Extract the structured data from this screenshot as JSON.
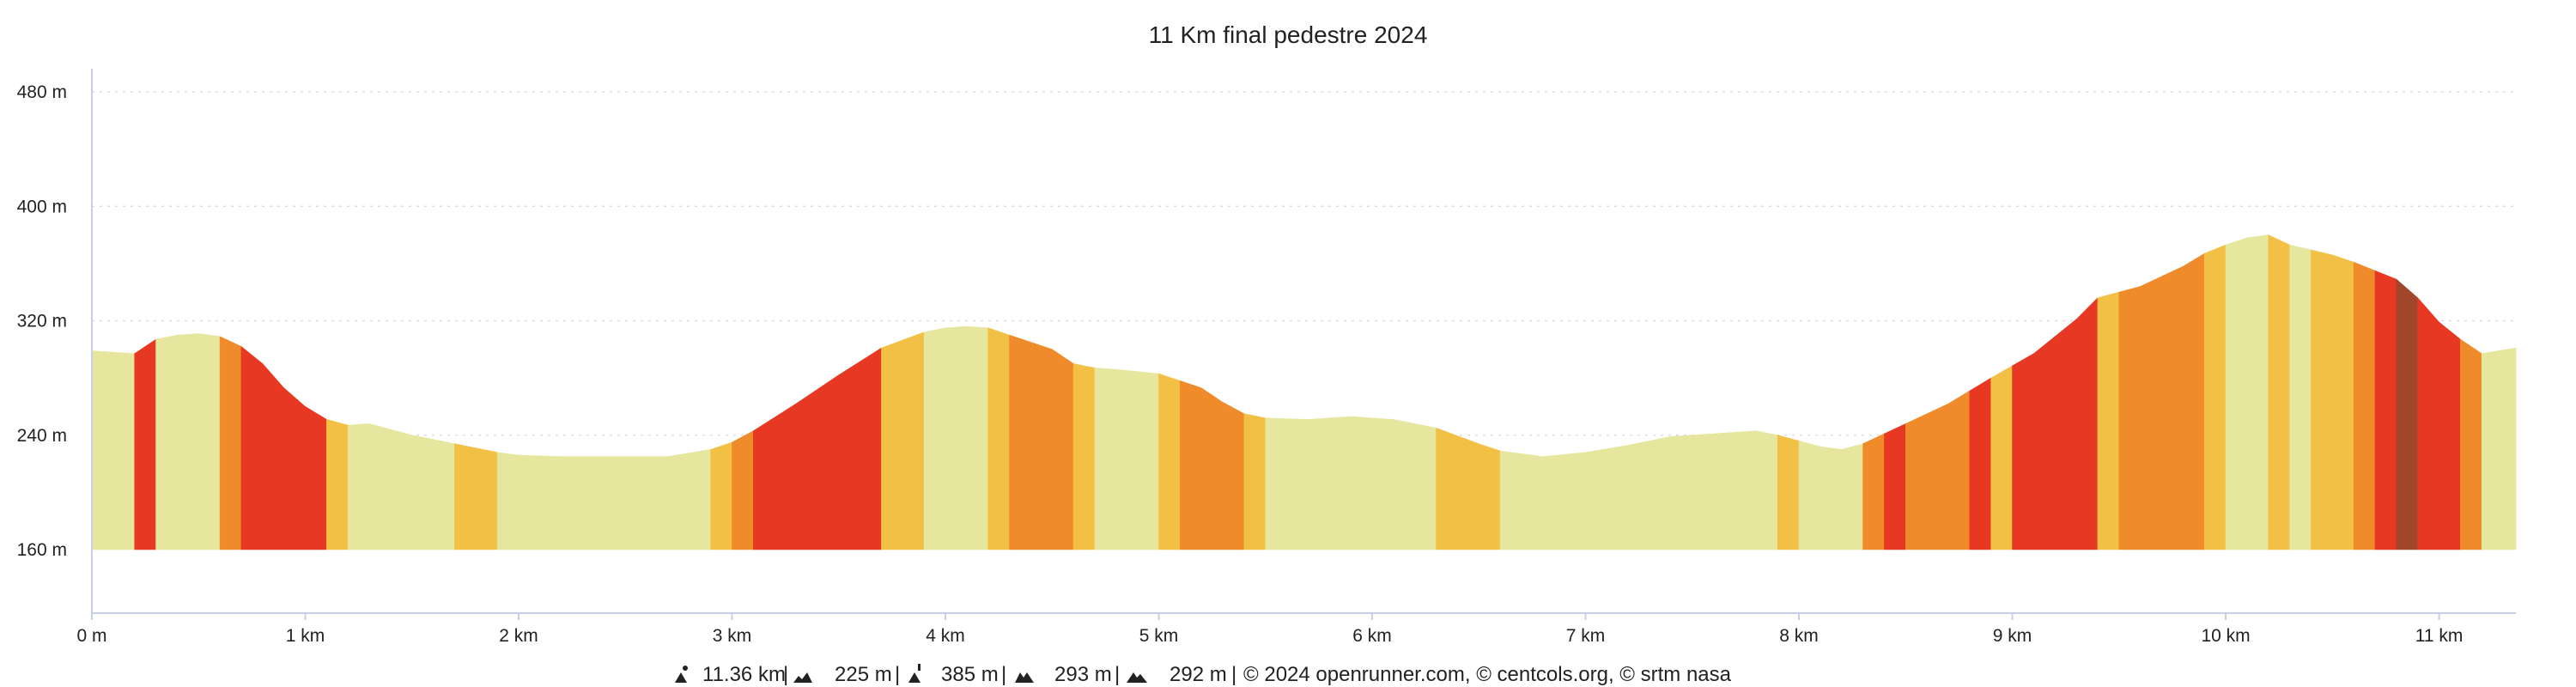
{
  "chart_data": {
    "type": "area",
    "title": "11 Km final pedestre 2024",
    "xlabel": "",
    "ylabel": "",
    "xlim": [
      0,
      11.36
    ],
    "ylim": [
      160,
      480
    ],
    "grid": true,
    "y_ticks": [
      {
        "value": 160,
        "label": "160 m"
      },
      {
        "value": 240,
        "label": "240 m"
      },
      {
        "value": 320,
        "label": "320 m"
      },
      {
        "value": 400,
        "label": "400 m"
      },
      {
        "value": 480,
        "label": "480 m"
      }
    ],
    "x_ticks": [
      {
        "value": 0,
        "label": "0 m"
      },
      {
        "value": 1,
        "label": "1 km"
      },
      {
        "value": 2,
        "label": "2 km"
      },
      {
        "value": 3,
        "label": "3 km"
      },
      {
        "value": 4,
        "label": "4 km"
      },
      {
        "value": 5,
        "label": "5 km"
      },
      {
        "value": 6,
        "label": "6 km"
      },
      {
        "value": 7,
        "label": "7 km"
      },
      {
        "value": 8,
        "label": "8 km"
      },
      {
        "value": 9,
        "label": "9 km"
      },
      {
        "value": 10,
        "label": "10 km"
      },
      {
        "value": 11,
        "label": "11 km"
      }
    ],
    "profile": {
      "x": [
        0,
        0.2,
        0.3,
        0.4,
        0.5,
        0.6,
        0.7,
        0.8,
        0.9,
        1.0,
        1.1,
        1.2,
        1.3,
        1.5,
        1.7,
        1.9,
        2.0,
        2.2,
        2.5,
        2.7,
        2.9,
        3.0,
        3.1,
        3.3,
        3.5,
        3.7,
        3.9,
        4.0,
        4.1,
        4.2,
        4.3,
        4.5,
        4.6,
        4.7,
        4.8,
        5.0,
        5.1,
        5.2,
        5.3,
        5.4,
        5.5,
        5.7,
        5.9,
        6.1,
        6.3,
        6.5,
        6.6,
        6.8,
        7.0,
        7.2,
        7.4,
        7.6,
        7.8,
        7.9,
        8.0,
        8.1,
        8.2,
        8.3,
        8.5,
        8.7,
        8.9,
        9.1,
        9.3,
        9.4,
        9.6,
        9.8,
        9.9,
        10.0,
        10.1,
        10.2,
        10.3,
        10.5,
        10.6,
        10.8,
        10.9,
        11.0,
        11.1,
        11.2,
        11.36
      ],
      "y": [
        299,
        297,
        307,
        310,
        311,
        309,
        302,
        290,
        273,
        260,
        251,
        247,
        248,
        240,
        234,
        228,
        226,
        225,
        225,
        225,
        230,
        235,
        243,
        262,
        282,
        301,
        312,
        315,
        316,
        315,
        310,
        300,
        290,
        287,
        286,
        283,
        278,
        273,
        263,
        255,
        252,
        251,
        253,
        251,
        245,
        234,
        229,
        225,
        228,
        233,
        239,
        241,
        243,
        240,
        236,
        232,
        230,
        234,
        248,
        262,
        280,
        297,
        321,
        336,
        344,
        358,
        367,
        373,
        378,
        380,
        373,
        366,
        361,
        349,
        336,
        319,
        307,
        297,
        301
      ]
    },
    "slope_color_segments": [
      {
        "from": 0,
        "to": 0.2,
        "color": "#e6e69e"
      },
      {
        "from": 0.2,
        "to": 0.3,
        "color": "#e63822"
      },
      {
        "from": 0.3,
        "to": 0.6,
        "color": "#e6e69e"
      },
      {
        "from": 0.6,
        "to": 0.7,
        "color": "#f08b2c"
      },
      {
        "from": 0.7,
        "to": 1.1,
        "color": "#e63822"
      },
      {
        "from": 1.1,
        "to": 1.2,
        "color": "#f2c044"
      },
      {
        "from": 1.2,
        "to": 1.7,
        "color": "#e6e69e"
      },
      {
        "from": 1.7,
        "to": 1.9,
        "color": "#f2c044"
      },
      {
        "from": 1.9,
        "to": 2.9,
        "color": "#e6e69e"
      },
      {
        "from": 2.9,
        "to": 3.0,
        "color": "#f2c044"
      },
      {
        "from": 3.0,
        "to": 3.1,
        "color": "#f08b2c"
      },
      {
        "from": 3.1,
        "to": 3.7,
        "color": "#e63822"
      },
      {
        "from": 3.7,
        "to": 3.9,
        "color": "#f2c044"
      },
      {
        "from": 3.9,
        "to": 4.2,
        "color": "#e6e69e"
      },
      {
        "from": 4.2,
        "to": 4.3,
        "color": "#f2c044"
      },
      {
        "from": 4.3,
        "to": 4.6,
        "color": "#f08b2c"
      },
      {
        "from": 4.6,
        "to": 4.7,
        "color": "#f2c044"
      },
      {
        "from": 4.7,
        "to": 5.0,
        "color": "#e6e69e"
      },
      {
        "from": 5.0,
        "to": 5.1,
        "color": "#f2c044"
      },
      {
        "from": 5.1,
        "to": 5.4,
        "color": "#f08b2c"
      },
      {
        "from": 5.4,
        "to": 5.5,
        "color": "#f2c044"
      },
      {
        "from": 5.5,
        "to": 6.3,
        "color": "#e6e69e"
      },
      {
        "from": 6.3,
        "to": 6.6,
        "color": "#f2c044"
      },
      {
        "from": 6.6,
        "to": 7.9,
        "color": "#e6e69e"
      },
      {
        "from": 7.9,
        "to": 8.0,
        "color": "#f2c044"
      },
      {
        "from": 8.0,
        "to": 8.3,
        "color": "#e6e69e"
      },
      {
        "from": 8.3,
        "to": 8.4,
        "color": "#f08b2c"
      },
      {
        "from": 8.4,
        "to": 8.5,
        "color": "#e63822"
      },
      {
        "from": 8.5,
        "to": 8.8,
        "color": "#f08b2c"
      },
      {
        "from": 8.8,
        "to": 8.9,
        "color": "#e63822"
      },
      {
        "from": 8.9,
        "to": 9.0,
        "color": "#f2c044"
      },
      {
        "from": 9.0,
        "to": 9.4,
        "color": "#e63822"
      },
      {
        "from": 9.4,
        "to": 9.5,
        "color": "#f2c044"
      },
      {
        "from": 9.5,
        "to": 9.9,
        "color": "#f08b2c"
      },
      {
        "from": 9.9,
        "to": 10.0,
        "color": "#f2c044"
      },
      {
        "from": 10.0,
        "to": 10.2,
        "color": "#e6e69e"
      },
      {
        "from": 10.2,
        "to": 10.3,
        "color": "#f2c044"
      },
      {
        "from": 10.3,
        "to": 10.4,
        "color": "#e6e69e"
      },
      {
        "from": 10.4,
        "to": 10.6,
        "color": "#f2c044"
      },
      {
        "from": 10.6,
        "to": 10.7,
        "color": "#f08b2c"
      },
      {
        "from": 10.7,
        "to": 10.8,
        "color": "#e63822"
      },
      {
        "from": 10.8,
        "to": 10.9,
        "color": "#a0462a"
      },
      {
        "from": 10.9,
        "to": 11.1,
        "color": "#e63822"
      },
      {
        "from": 11.1,
        "to": 11.2,
        "color": "#f08b2c"
      },
      {
        "from": 11.2,
        "to": 11.36,
        "color": "#e6e69e"
      }
    ],
    "footer": {
      "distance": "11.36 km",
      "elevation_gain": "225 m",
      "max_altitude": "385 m",
      "elevation_loss_or_min": "293 m",
      "descent": "292 m",
      "copyright": "© 2024 openrunner.com, © centcols.org, © srtm nasa",
      "separator": "|",
      "icons": [
        "distance-peak-icon",
        "ascent-icon",
        "max-altitude-icon",
        "descent-double-peak-icon",
        "loss-icon"
      ]
    },
    "colors": {
      "flat": "#e6e69e",
      "gentle": "#f2c044",
      "moderate": "#f08b2c",
      "steep": "#e63822",
      "very_steep": "#a0462a",
      "axis": "#c9cfe8",
      "grid": "#d7d7d7"
    }
  }
}
